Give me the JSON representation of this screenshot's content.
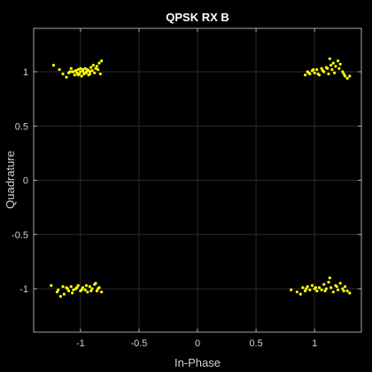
{
  "chart_data": {
    "type": "scatter",
    "title": "QPSK RX B",
    "xlabel": "In-Phase",
    "ylabel": "Quadrature",
    "xlim": [
      -1.4,
      1.4
    ],
    "ylim": [
      -1.4,
      1.4
    ],
    "xticks": [
      -1,
      -0.5,
      0,
      0.5,
      1
    ],
    "yticks": [
      -1,
      -0.5,
      0,
      0.5,
      1
    ],
    "xtick_labels": [
      "-1",
      "-0.5",
      "0",
      "0.5",
      "1"
    ],
    "ytick_labels": [
      "-1",
      "-0.5",
      "0",
      "0.5",
      "1"
    ],
    "grid": true,
    "colors": {
      "background": "#000000",
      "axes": "#000000",
      "axis_line": "#cfcfcf",
      "grid": "#3a3a3a",
      "text": "#d0d0d0",
      "title": "#ffffff",
      "marker": "#ffff00"
    },
    "series": [
      {
        "x": [
          -1.23,
          -1.18,
          -1.15,
          -1.12,
          -1.1,
          -1.08,
          -1.07,
          -1.05,
          -1.04,
          -1.03,
          -1.02,
          -1.01,
          -1.0,
          -0.99,
          -0.98,
          -0.97,
          -0.96,
          -0.95,
          -0.94,
          -0.93,
          -0.92,
          -0.91,
          -0.9,
          -0.88,
          -0.86,
          -0.85,
          -0.84,
          -0.83,
          -0.82,
          -1.06,
          -1.02,
          -0.98,
          -0.95,
          -0.92,
          -1.09,
          -1.0,
          -0.97,
          -0.93,
          -0.89,
          -0.87,
          0.92,
          0.94,
          0.96,
          0.98,
          1.0,
          1.02,
          1.04,
          1.06,
          1.08,
          1.1,
          1.12,
          1.14,
          1.15,
          1.16,
          1.18,
          1.2,
          1.22,
          1.24,
          1.26,
          1.28,
          0.95,
          0.99,
          1.03,
          1.07,
          1.11,
          1.13,
          1.17,
          1.21,
          1.25,
          1.3,
          -1.25,
          -1.2,
          -1.17,
          -1.14,
          -1.12,
          -1.1,
          -1.08,
          -1.06,
          -1.04,
          -1.02,
          -1.0,
          -0.98,
          -0.96,
          -0.94,
          -0.92,
          -0.9,
          -0.88,
          -0.86,
          -0.84,
          -0.82,
          -1.19,
          -1.15,
          -1.11,
          -1.07,
          -1.03,
          -0.99,
          -0.95,
          -0.91,
          -0.87,
          -0.85,
          0.8,
          0.85,
          0.88,
          0.9,
          0.92,
          0.94,
          0.96,
          0.98,
          1.0,
          1.02,
          1.04,
          1.06,
          1.08,
          1.1,
          1.12,
          1.14,
          1.16,
          1.18,
          1.2,
          1.22,
          1.24,
          1.26,
          1.28,
          1.3,
          0.93,
          1.01,
          1.09,
          1.13,
          1.19,
          1.25
        ],
        "y": [
          1.06,
          1.02,
          0.98,
          0.95,
          0.99,
          1.03,
          1.0,
          0.97,
          1.01,
          0.99,
          1.02,
          0.98,
          1.0,
          0.96,
          1.01,
          0.98,
          1.03,
          0.99,
          1.02,
          0.97,
          1.0,
          1.04,
          1.01,
          0.99,
          1.05,
          1.02,
          1.08,
          0.98,
          1.1,
          1.0,
          0.97,
          1.02,
          1.0,
          0.98,
          1.0,
          1.03,
          0.99,
          1.01,
          1.06,
          1.03,
          0.97,
          1.0,
          0.98,
          1.01,
          0.99,
          1.02,
          0.97,
          1.03,
          1.0,
          1.04,
          0.98,
          1.06,
          1.02,
          1.08,
          1.05,
          1.1,
          1.07,
          1.0,
          0.96,
          0.94,
          0.99,
          1.02,
          0.98,
          1.01,
          1.03,
          1.12,
          0.99,
          1.03,
          0.98,
          0.96,
          -0.97,
          -1.03,
          -1.07,
          -1.05,
          -0.99,
          -1.02,
          -0.98,
          -1.01,
          -1.0,
          -0.97,
          -1.02,
          -0.99,
          -1.01,
          -1.03,
          -0.98,
          -1.0,
          -0.96,
          -1.02,
          -0.99,
          -1.03,
          -1.01,
          -0.98,
          -1.0,
          -1.04,
          -0.99,
          -1.01,
          -0.97,
          -1.02,
          -0.95,
          -1.0,
          -1.01,
          -1.03,
          -1.05,
          -0.99,
          -1.02,
          -0.98,
          -1.01,
          -0.97,
          -1.0,
          -1.02,
          -0.99,
          -1.01,
          -0.96,
          -1.0,
          -0.94,
          -0.99,
          -1.03,
          -0.97,
          -1.01,
          -0.95,
          -1.0,
          -0.98,
          -1.02,
          -1.04,
          -1.0,
          -0.99,
          -1.02,
          -0.9,
          -0.98,
          -1.02
        ]
      }
    ]
  }
}
